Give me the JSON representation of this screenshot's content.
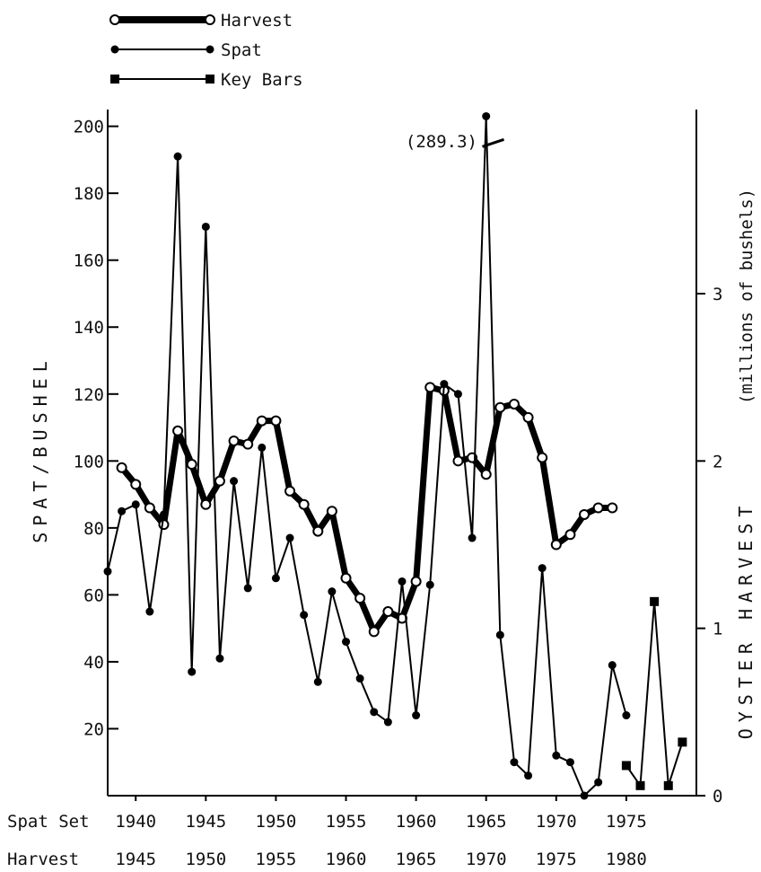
{
  "chart_data": {
    "type": "line",
    "legend": {
      "placement": "top-left",
      "entries": [
        {
          "label": "Harvest",
          "marker": "open-circle",
          "line": "thick"
        },
        {
          "label": "Spat",
          "marker": "filled-circle",
          "line": "thin"
        },
        {
          "label": "Key Bars",
          "marker": "filled-square",
          "line": "thin"
        }
      ]
    },
    "ylabel_left": "SPAT/BUSHEL",
    "ylabel_right_main": "OYSTER HARVEST",
    "ylabel_right_unit": "(millions of bushels)",
    "ylim_left": [
      0,
      205
    ],
    "ylim_right": [
      0,
      4.1
    ],
    "yticks_left": [
      20,
      40,
      60,
      80,
      100,
      120,
      140,
      160,
      180,
      200
    ],
    "yticks_right": [
      0,
      1,
      2,
      3
    ],
    "x_axis_rows": [
      {
        "label": "Spat Set",
        "ticks": [
          "1940",
          "1945",
          "1950",
          "1955",
          "1960",
          "1965",
          "1970",
          "1975"
        ],
        "tick_years": [
          1940,
          1945,
          1950,
          1955,
          1960,
          1965,
          1970,
          1975
        ]
      },
      {
        "label": "Harvest",
        "ticks": [
          "1945",
          "1950",
          "1955",
          "1960",
          "1965",
          "1970",
          "1975",
          "1980"
        ],
        "tick_years": [
          1940,
          1945,
          1950,
          1955,
          1960,
          1965,
          1970,
          1975
        ]
      }
    ],
    "xlim": [
      1938,
      1980
    ],
    "annotation": {
      "text": "(289.3)",
      "x": 1965.5,
      "y": 195,
      "note_value": 289.3
    },
    "series": [
      {
        "name": "Harvest",
        "axis": "left",
        "x": [
          1939,
          1940,
          1941,
          1942,
          1943,
          1944,
          1945,
          1946,
          1947,
          1948,
          1949,
          1950,
          1951,
          1952,
          1953,
          1954,
          1955,
          1956,
          1957,
          1958,
          1959,
          1960,
          1961,
          1962,
          1963,
          1964,
          1965,
          1966,
          1967,
          1968,
          1969,
          1970,
          1971,
          1972,
          1973,
          1974
        ],
        "values": [
          98,
          93,
          86,
          81,
          109,
          99,
          87,
          94,
          106,
          105,
          112,
          112,
          91,
          87,
          79,
          85,
          65,
          59,
          49,
          55,
          53,
          64,
          122,
          121,
          100,
          101,
          96,
          116,
          117,
          113,
          101,
          75,
          78,
          84,
          86,
          86
        ]
      },
      {
        "name": "Spat",
        "axis": "left",
        "x": [
          1938,
          1939,
          1940,
          1941,
          1942,
          1943,
          1944,
          1945,
          1946,
          1947,
          1948,
          1949,
          1950,
          1951,
          1952,
          1953,
          1954,
          1955,
          1956,
          1957,
          1958,
          1959,
          1960,
          1961,
          1962,
          1963,
          1964,
          1965,
          1966,
          1967,
          1968,
          1969,
          1970,
          1971,
          1972,
          1973,
          1974,
          1975
        ],
        "values": [
          67,
          85,
          87,
          55,
          84,
          191,
          37,
          170,
          41,
          94,
          62,
          104,
          65,
          77,
          54,
          34,
          61,
          46,
          35,
          25,
          22,
          64,
          24,
          63,
          123,
          120,
          77,
          289.3,
          48,
          10,
          6,
          68,
          12,
          10,
          0,
          4,
          39,
          24
        ]
      },
      {
        "name": "Key Bars",
        "axis": "left",
        "x": [
          1975,
          1976,
          1977,
          1978,
          1979
        ],
        "values": [
          9,
          3,
          58,
          3,
          16
        ]
      }
    ]
  }
}
